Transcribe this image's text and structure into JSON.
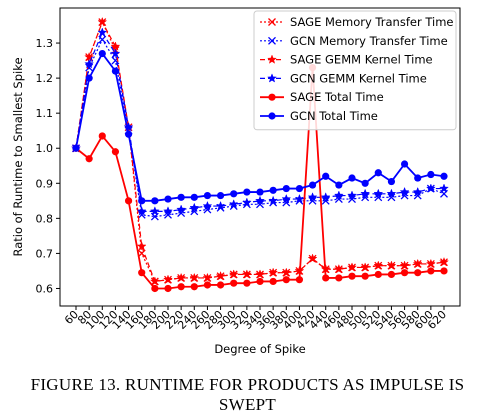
{
  "caption": "FIGURE 13. RUNTIME FOR PRODUCTS AS IMPULSE IS SWEPT",
  "chart_data": {
    "type": "line",
    "title": "",
    "xlabel": "Degree of Spike",
    "ylabel": "Ratio of Runtime to Smallest Spike",
    "ylim": [
      0.55,
      1.4
    ],
    "yticks": [
      0.6,
      0.7,
      0.8,
      0.9,
      1.0,
      1.1,
      1.2,
      1.3
    ],
    "x": [
      60,
      80,
      100,
      120,
      140,
      160,
      180,
      200,
      220,
      240,
      260,
      280,
      300,
      320,
      340,
      360,
      380,
      400,
      420,
      440,
      460,
      480,
      500,
      520,
      540,
      560,
      580,
      600,
      620
    ],
    "legend_position": "top-right",
    "grid": false,
    "series": [
      {
        "name": "SAGE Memory Transfer Time",
        "color": "#ff0000",
        "style": "dotted",
        "marker": "x",
        "values": [
          1.0,
          1.26,
          1.36,
          1.28,
          1.06,
          0.7,
          0.62,
          0.625,
          0.63,
          0.63,
          0.63,
          0.635,
          0.64,
          0.64,
          0.64,
          0.645,
          0.645,
          0.65,
          0.685,
          0.655,
          0.655,
          0.66,
          0.66,
          0.665,
          0.665,
          0.665,
          0.67,
          0.67,
          0.675
        ]
      },
      {
        "name": "GCN Memory Transfer Time",
        "color": "#0000ff",
        "style": "dotted",
        "marker": "x",
        "values": [
          1.0,
          1.23,
          1.31,
          1.25,
          1.05,
          0.81,
          0.805,
          0.81,
          0.815,
          0.82,
          0.825,
          0.83,
          0.835,
          0.84,
          0.84,
          0.845,
          0.845,
          0.85,
          0.85,
          0.85,
          0.855,
          0.855,
          0.86,
          0.86,
          0.86,
          0.865,
          0.865,
          0.885,
          0.87
        ]
      },
      {
        "name": "SAGE GEMM Kernel Time",
        "color": "#ff0000",
        "style": "dashed",
        "marker": "star",
        "values": [
          1.0,
          1.26,
          1.36,
          1.29,
          1.06,
          0.72,
          0.62,
          0.625,
          0.63,
          0.63,
          0.63,
          0.635,
          0.64,
          0.64,
          0.64,
          0.645,
          0.645,
          0.65,
          0.685,
          0.655,
          0.655,
          0.66,
          0.66,
          0.665,
          0.665,
          0.665,
          0.67,
          0.67,
          0.675
        ]
      },
      {
        "name": "GCN GEMM Kernel Time",
        "color": "#0000ff",
        "style": "dashed",
        "marker": "star",
        "values": [
          1.0,
          1.24,
          1.33,
          1.27,
          1.06,
          0.82,
          0.82,
          0.82,
          0.825,
          0.83,
          0.835,
          0.835,
          0.84,
          0.845,
          0.85,
          0.85,
          0.855,
          0.855,
          0.86,
          0.86,
          0.865,
          0.865,
          0.87,
          0.87,
          0.87,
          0.875,
          0.875,
          0.885,
          0.885
        ]
      },
      {
        "name": "SAGE Total Time",
        "color": "#ff0000",
        "style": "solid",
        "marker": "circle",
        "values": [
          1.0,
          0.97,
          1.035,
          0.99,
          0.85,
          0.645,
          0.6,
          0.6,
          0.605,
          0.605,
          0.61,
          0.61,
          0.615,
          0.615,
          0.62,
          0.62,
          0.625,
          0.625,
          1.23,
          0.63,
          0.63,
          0.635,
          0.635,
          0.64,
          0.64,
          0.645,
          0.645,
          0.65,
          0.65
        ]
      },
      {
        "name": "GCN Total Time",
        "color": "#0000ff",
        "style": "solid",
        "marker": "circle",
        "values": [
          1.0,
          1.2,
          1.27,
          1.22,
          1.04,
          0.85,
          0.85,
          0.855,
          0.86,
          0.86,
          0.865,
          0.865,
          0.87,
          0.875,
          0.875,
          0.88,
          0.885,
          0.885,
          0.895,
          0.92,
          0.895,
          0.915,
          0.9,
          0.93,
          0.905,
          0.955,
          0.915,
          0.925,
          0.92
        ]
      }
    ]
  }
}
